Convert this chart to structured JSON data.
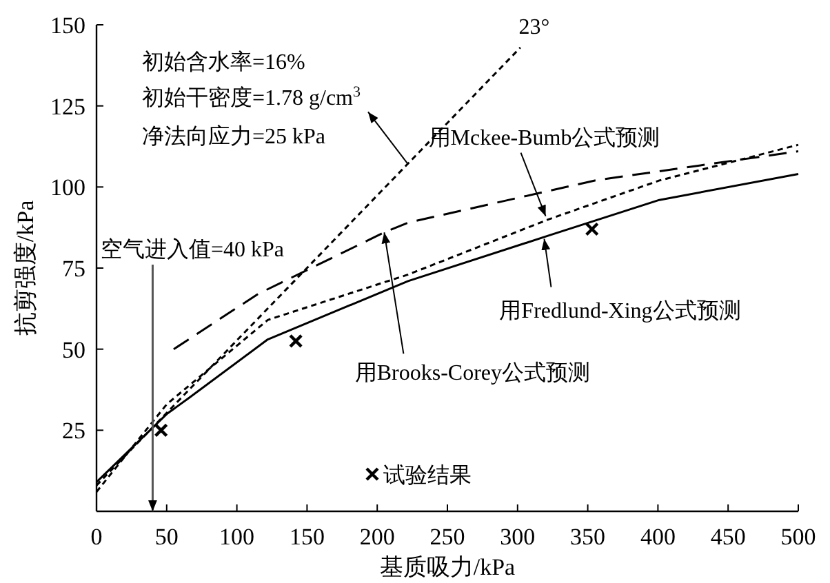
{
  "chart_data": {
    "type": "line",
    "xlabel": "基质吸力/kPa",
    "ylabel": "抗剪强度/kPa",
    "xlim": [
      0,
      500
    ],
    "ylim": [
      0,
      150
    ],
    "xticks": [
      0,
      50,
      100,
      150,
      200,
      250,
      300,
      350,
      400,
      450,
      500
    ],
    "yticks": [
      25,
      50,
      75,
      100,
      125,
      150
    ],
    "grid": false,
    "legend": "bottom",
    "series": [
      {
        "color": "#000000",
        "line_style": "solid",
        "x": [
          0,
          50,
          66,
          122,
          172,
          222,
          322,
          401,
          500
        ],
        "values": [
          9,
          30,
          35,
          53,
          62,
          71,
          85,
          96,
          104
        ]
      },
      {
        "color": "#000000",
        "line_style": "dotted",
        "x": [
          0,
          50,
          122,
          222,
          322,
          401,
          500
        ],
        "values": [
          6,
          33,
          59,
          73,
          90,
          102,
          113
        ]
      },
      {
        "color": "#000000",
        "line_style": "dashed",
        "x": [
          55,
          115,
          205,
          222,
          355,
          500
        ],
        "values": [
          50,
          67,
          86,
          89,
          102,
          111
        ]
      },
      {
        "color": "#000000",
        "line_style": "dotted",
        "x": [
          0,
          302
        ],
        "values": [
          8,
          143
        ]
      },
      {
        "type": "scatter",
        "name": "试验结果",
        "color": "#000000",
        "marker": "cross",
        "x": [
          46,
          142,
          353
        ],
        "values": [
          25,
          52.5,
          87
        ]
      }
    ],
    "ref_lines": [
      {
        "axis": "x",
        "value": 40,
        "label": "空气进入值=40 kPa",
        "color": "#555555"
      }
    ],
    "annotations": [
      "初始含水率=16%",
      {
        "text": "初始干密度=1.78 g/cm$^{3}$",
        "x": 222,
        "y": 107
      },
      "净法向应力=25 kPa",
      {
        "text": "用Mckee-Bumb公式预测",
        "x": 320,
        "y": 91
      },
      {
        "text": "用Fredlund-Xing公式预测",
        "x": 319,
        "y": 84
      },
      {
        "text": "用Brooks-Corey公式预测",
        "x": 205,
        "y": 86
      },
      {
        "text": "23°",
        "x": 302,
        "y": 143
      }
    ]
  }
}
